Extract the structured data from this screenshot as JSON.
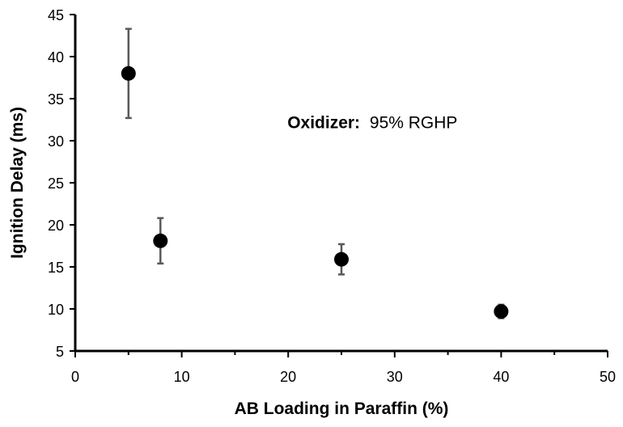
{
  "chart_data": {
    "type": "scatter",
    "title": "",
    "xlabel": "AB Loading in Paraffin (%)",
    "ylabel": "Ignition Delay (ms)",
    "xlim": [
      0,
      50
    ],
    "ylim": [
      5,
      45
    ],
    "x_ticks": [
      "0",
      "10",
      "20",
      "30",
      "40",
      "50"
    ],
    "y_ticks": [
      "5",
      "10",
      "15",
      "20",
      "25",
      "30",
      "35",
      "40",
      "45"
    ],
    "grid": false,
    "legend": "none",
    "marker_color": "#000000",
    "errorbar_color": "#595959",
    "points": [
      {
        "x": 5,
        "y": 38.0,
        "err_low": 5.3,
        "err_high": 5.3
      },
      {
        "x": 8,
        "y": 18.1,
        "err_low": 2.7,
        "err_high": 2.7
      },
      {
        "x": 25,
        "y": 15.9,
        "err_low": 1.8,
        "err_high": 1.8
      },
      {
        "x": 40,
        "y": 9.7,
        "err_low": 0.8,
        "err_high": 0.8
      }
    ],
    "annotation": {
      "label": "Oxidizer:",
      "value": "95% RGHP",
      "x": 20,
      "y": 31.5
    }
  }
}
